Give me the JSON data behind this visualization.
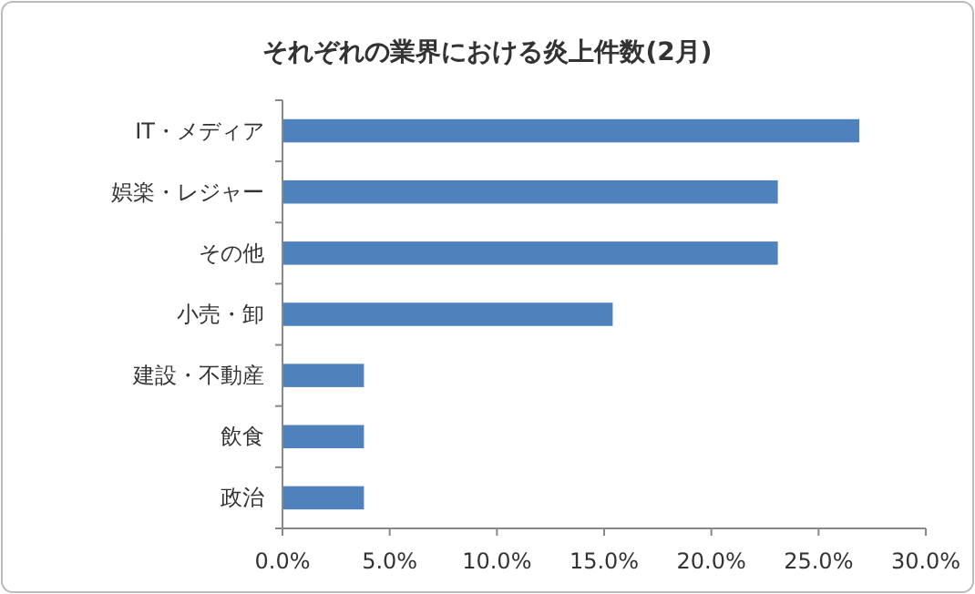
{
  "chart_data": {
    "type": "bar",
    "orientation": "horizontal",
    "title": "それぞれの業界における炎上件数(2月)",
    "categories": [
      "IT・メディア",
      "娯楽・レジャー",
      "その他",
      "小売・卸",
      "建設・不動産",
      "飲食",
      "政治"
    ],
    "values": [
      26.9,
      23.1,
      23.1,
      15.4,
      3.8,
      3.8,
      3.8
    ],
    "color": "#4f81bd",
    "xlim": [
      0,
      30
    ],
    "xticks": [
      {
        "value": 0,
        "label": "0.0%"
      },
      {
        "value": 5,
        "label": "5.0%"
      },
      {
        "value": 10,
        "label": "10.0%"
      },
      {
        "value": 15,
        "label": "15.0%"
      },
      {
        "value": 20,
        "label": "20.0%"
      },
      {
        "value": 25,
        "label": "25.0%"
      },
      {
        "value": 30,
        "label": "30.0%"
      }
    ],
    "grid": false
  }
}
